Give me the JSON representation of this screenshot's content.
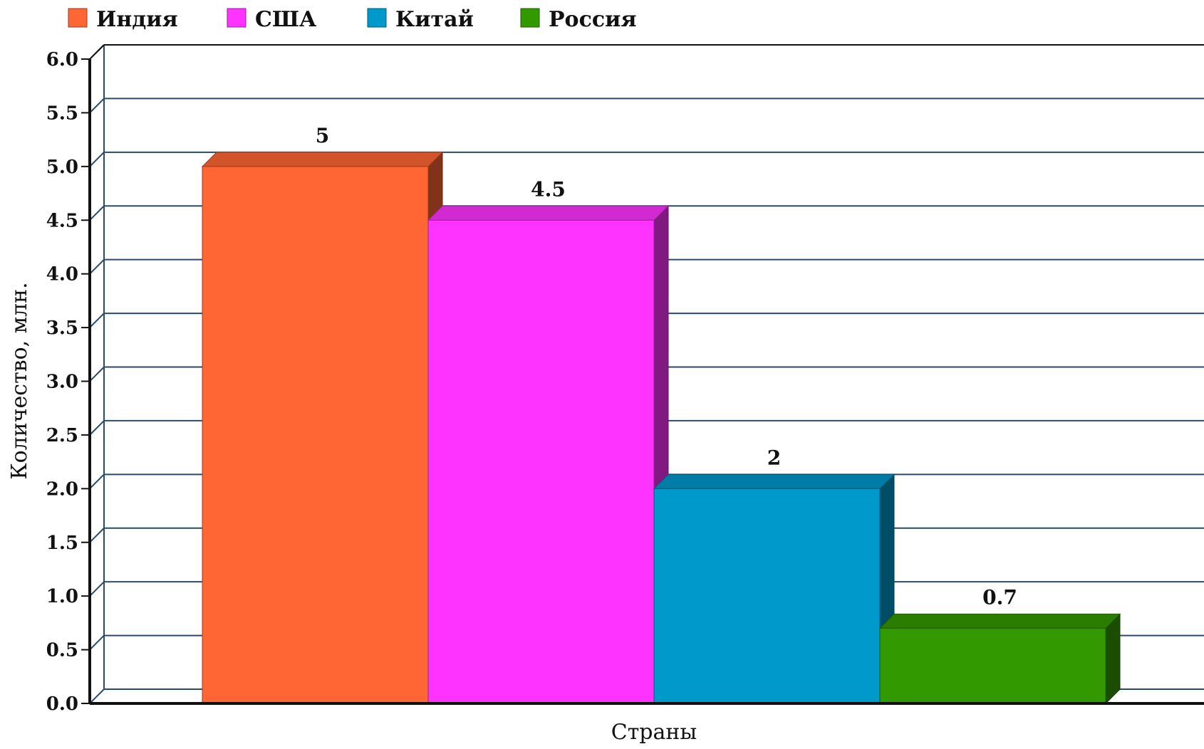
{
  "chart_data": {
    "type": "bar",
    "title": "",
    "xlabel": "Страны",
    "ylabel": "Количество, млн.",
    "ylim": [
      0,
      6
    ],
    "y_ticks": [
      "0.0",
      "0.5",
      "1.0",
      "1.5",
      "2.0",
      "2.5",
      "3.0",
      "3.5",
      "4.0",
      "4.5",
      "5.0",
      "5.5",
      "6.0"
    ],
    "grid": true,
    "legend_position": "top-left",
    "style": "3d",
    "series": [
      {
        "name": "Индия",
        "value": 5,
        "label": "5",
        "color": "#ff6633"
      },
      {
        "name": "США",
        "value": 4.5,
        "label": "4.5",
        "color": "#ff33ff"
      },
      {
        "name": "Китай",
        "value": 2,
        "label": "2",
        "color": "#0099cc"
      },
      {
        "name": "Россия",
        "value": 0.7,
        "label": "0.7",
        "color": "#339900"
      }
    ]
  }
}
